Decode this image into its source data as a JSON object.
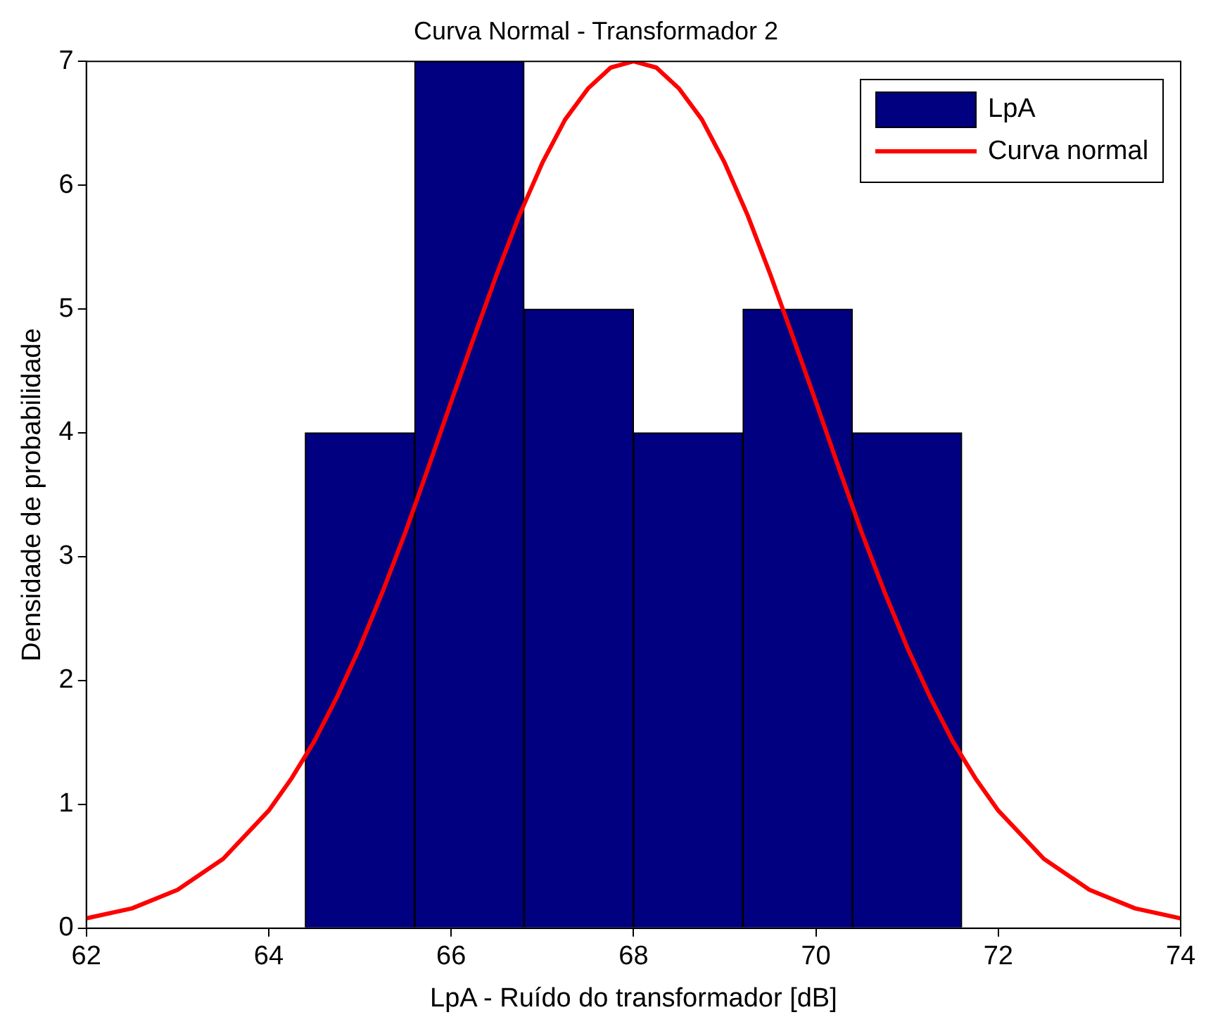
{
  "chart_data": {
    "type": "histogram",
    "title": "Curva Normal - Transformador 2",
    "xlabel": "LpA - Ruído do transformador [dB]",
    "ylabel": "Densidade de probabilidade",
    "xlim": [
      62,
      74
    ],
    "xticks": [
      62,
      64,
      66,
      68,
      70,
      72,
      74
    ],
    "ylim": [
      0,
      7
    ],
    "yticks": [
      0,
      1,
      2,
      3,
      4,
      5,
      6,
      7
    ],
    "grid": false,
    "legend": "top right",
    "series": [
      {
        "type": "histogram",
        "name": "LpA",
        "color": "#000080",
        "bins": [
          64.4,
          65.6,
          66.8,
          68.0,
          69.2,
          70.4,
          71.6
        ],
        "values": [
          4,
          7,
          5,
          4,
          5,
          4
        ]
      },
      {
        "type": "line",
        "name": "Curva normal",
        "color": "#ff0000",
        "x": [
          62,
          62.5,
          63,
          63.5,
          64,
          64.25,
          64.5,
          64.75,
          65,
          65.25,
          65.5,
          65.75,
          66,
          66.25,
          66.5,
          66.75,
          67,
          67.25,
          67.5,
          67.75,
          68,
          68.25,
          68.5,
          68.75,
          69,
          69.25,
          69.5,
          69.75,
          70,
          70.25,
          70.5,
          70.75,
          71,
          71.25,
          71.5,
          71.75,
          72,
          72.5,
          73,
          73.5,
          74
        ],
        "values": [
          0.08,
          0.16,
          0.31,
          0.56,
          0.95,
          1.21,
          1.51,
          1.87,
          2.27,
          2.72,
          3.2,
          3.72,
          4.25,
          4.77,
          5.28,
          5.76,
          6.18,
          6.53,
          6.78,
          6.95,
          7,
          6.95,
          6.78,
          6.53,
          6.18,
          5.76,
          5.28,
          4.77,
          4.25,
          3.72,
          3.2,
          2.72,
          2.27,
          1.87,
          1.51,
          1.21,
          0.95,
          0.56,
          0.31,
          0.16,
          0.08
        ]
      }
    ]
  }
}
